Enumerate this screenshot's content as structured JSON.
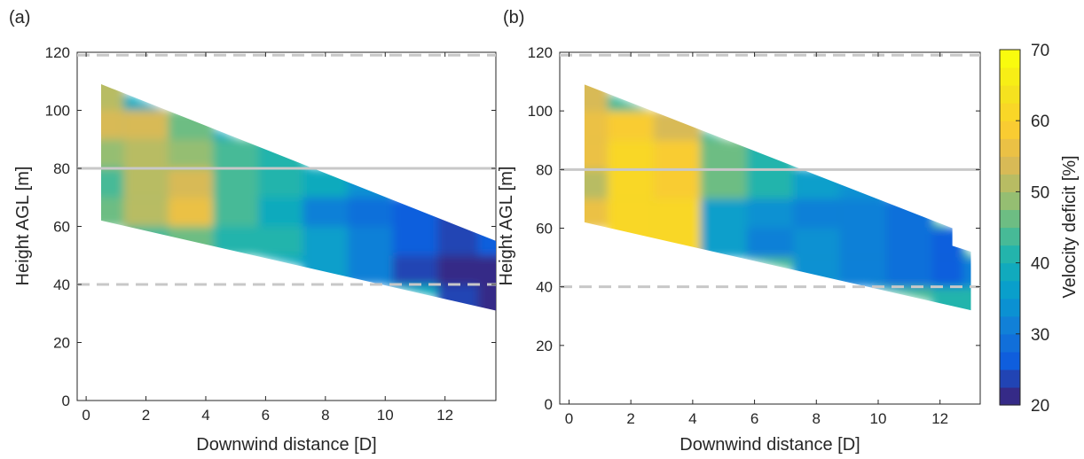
{
  "chart_data": [
    {
      "type": "heatmap",
      "panel_label": "(a)",
      "xlabel": "Downwind distance [D]",
      "ylabel": "Height AGL [m]",
      "xlim": [
        -0.3,
        13.7
      ],
      "ylim": [
        0,
        120
      ],
      "xticks": [
        0,
        2,
        4,
        6,
        8,
        10,
        12
      ],
      "yticks": [
        0,
        20,
        40,
        60,
        80,
        100,
        120
      ],
      "domain_outline": [
        [
          0.5,
          109
        ],
        [
          13.7,
          55
        ],
        [
          13.7,
          31
        ],
        [
          0.5,
          62
        ]
      ],
      "reference_lines": [
        {
          "y": 119,
          "style": "dashed"
        },
        {
          "y": 80,
          "style": "solid"
        },
        {
          "y": 40,
          "style": "dashed"
        }
      ],
      "x": [
        0.5,
        2,
        3.5,
        5,
        6.5,
        8,
        9.5,
        11,
        12.5,
        13.7
      ],
      "y": [
        35,
        45,
        55,
        65,
        75,
        85,
        95,
        105
      ],
      "z_pct": [
        [
          null,
          null,
          null,
          null,
          null,
          null,
          null,
          null,
          24,
          22
        ],
        [
          null,
          null,
          null,
          null,
          null,
          35,
          30,
          23,
          22,
          22
        ],
        [
          null,
          43,
          45,
          41,
          40,
          35,
          30,
          26,
          24,
          25
        ],
        [
          45,
          50,
          55,
          44,
          38,
          30,
          29,
          26,
          24,
          null
        ],
        [
          44,
          50,
          53,
          44,
          41,
          38,
          34,
          null,
          null,
          null
        ],
        [
          49,
          52,
          48,
          43,
          40,
          null,
          null,
          null,
          null,
          null
        ],
        [
          53,
          54,
          47,
          null,
          null,
          null,
          null,
          null,
          null,
          null
        ],
        [
          52,
          null,
          null,
          null,
          null,
          null,
          null,
          null,
          null,
          null
        ]
      ]
    },
    {
      "type": "heatmap",
      "panel_label": "(b)",
      "xlabel": "Downwind distance [D]",
      "ylabel": "Height AGL [m]",
      "xlim": [
        -0.3,
        13.3
      ],
      "ylim": [
        0,
        120
      ],
      "xticks": [
        0,
        2,
        4,
        6,
        8,
        10,
        12
      ],
      "yticks": [
        0,
        20,
        40,
        60,
        80,
        100,
        120
      ],
      "domain_outline": [
        [
          0.5,
          109
        ],
        [
          12.4,
          60
        ],
        [
          12.4,
          54
        ],
        [
          13.0,
          52
        ],
        [
          13.0,
          32
        ],
        [
          0.5,
          62
        ]
      ],
      "reference_lines": [
        {
          "y": 119,
          "style": "dashed"
        },
        {
          "y": 80,
          "style": "solid"
        },
        {
          "y": 40,
          "style": "dashed"
        }
      ],
      "x": [
        0.5,
        2,
        3.5,
        5,
        6.5,
        8,
        9.5,
        11,
        12.5,
        13.0
      ],
      "y": [
        35,
        45,
        55,
        65,
        75,
        85,
        95,
        105
      ],
      "z_pct": [
        [
          null,
          null,
          null,
          null,
          null,
          null,
          null,
          null,
          40,
          42
        ],
        [
          null,
          null,
          null,
          null,
          null,
          33,
          32,
          28,
          27,
          30
        ],
        [
          null,
          60,
          60,
          37,
          32,
          33,
          30,
          28,
          27,
          null
        ],
        [
          55,
          62,
          60,
          35,
          34,
          32,
          30,
          28,
          null,
          null
        ],
        [
          52,
          60,
          59,
          45,
          40,
          36,
          33,
          null,
          null,
          null
        ],
        [
          56,
          62,
          58,
          47,
          42,
          null,
          null,
          null,
          null,
          null
        ],
        [
          57,
          58,
          54,
          null,
          null,
          null,
          null,
          null,
          null,
          null
        ],
        [
          54,
          null,
          null,
          null,
          null,
          null,
          null,
          null,
          null,
          null
        ]
      ]
    }
  ],
  "colorbar": {
    "label": "Velocity deficit [%]",
    "range": [
      20,
      70
    ],
    "ticks": [
      20,
      30,
      40,
      50,
      60,
      70
    ],
    "colormap": "parula"
  }
}
